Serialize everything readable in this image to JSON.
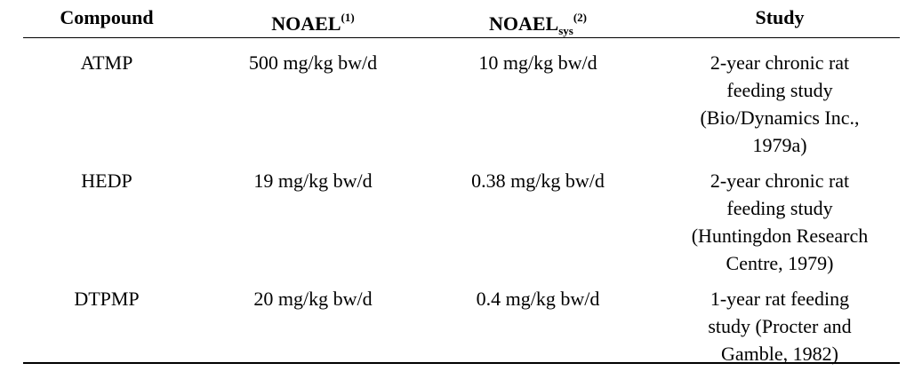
{
  "table": {
    "header": [
      {
        "text": "Compound"
      },
      {
        "text": "NOAEL",
        "sup": "(1)"
      },
      {
        "text": "NOAEL",
        "sub": "sys",
        "sup": "(2)"
      },
      {
        "text": "Study"
      }
    ],
    "rows": [
      [
        "ATMP",
        "500 mg/kg bw/d",
        "10 mg/kg bw/d",
        [
          "2-year chronic rat",
          "feeding study",
          "(Bio/Dynamics Inc.,",
          "1979a)"
        ]
      ],
      [
        "HEDP",
        "19 mg/kg bw/d",
        "0.38 mg/kg bw/d",
        [
          "2-year chronic rat",
          "feeding study",
          "(Huntingdon Research",
          "Centre, 1979)"
        ]
      ],
      [
        "DTPMP",
        "20 mg/kg bw/d",
        "0.4 mg/kg bw/d",
        [
          "1-year rat feeding",
          "study (Procter and",
          "Gamble, 1982)"
        ]
      ]
    ]
  }
}
